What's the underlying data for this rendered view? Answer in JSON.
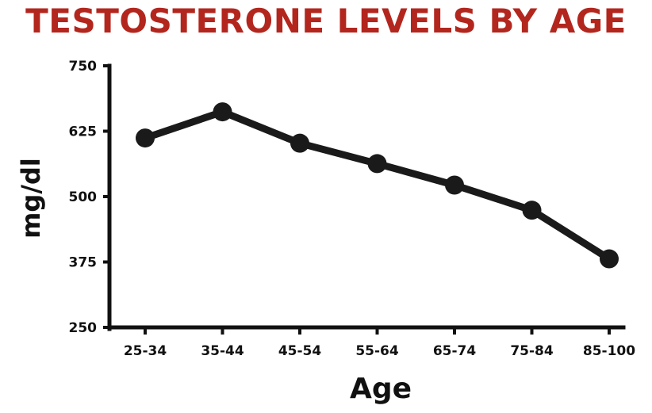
{
  "chart_data": {
    "type": "line",
    "title": "TESTOSTERONE LEVELS BY AGE",
    "xlabel": "Age",
    "ylabel": "mg/dl",
    "categories": [
      "25-34",
      "35-44",
      "45-54",
      "55-64",
      "65-74",
      "75-84",
      "85-100"
    ],
    "series": [
      {
        "values": [
          612,
          662,
          602,
          563,
          522,
          474,
          381
        ]
      }
    ],
    "ylim": [
      250,
      750
    ],
    "yticks": [
      250,
      375,
      500,
      625,
      750
    ],
    "grid": false,
    "legend": "none"
  },
  "colors": {
    "title": "#b3261e",
    "line": "#1a1a1a",
    "axis": "#111111",
    "text": "#111111"
  }
}
